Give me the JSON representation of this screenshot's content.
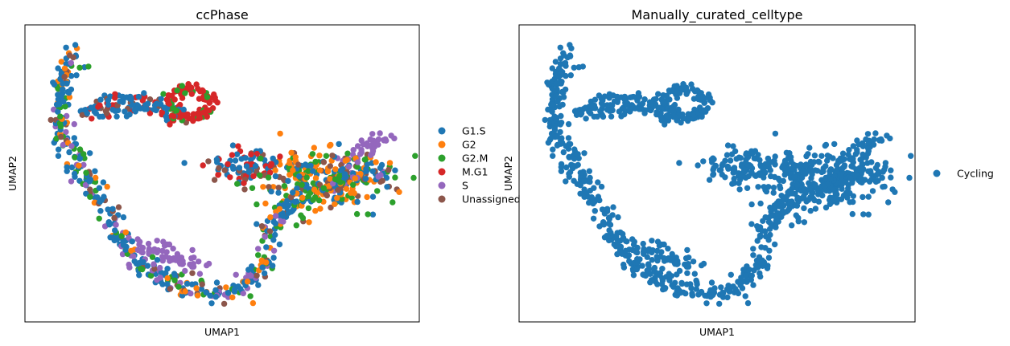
{
  "chart_data": [
    {
      "type": "scatter",
      "title": "ccPhase",
      "xlabel": "UMAP1",
      "ylabel": "UMAP2",
      "xlim": [
        -0.5,
        10.5
      ],
      "ylim": [
        -0.5,
        10.5
      ],
      "grid": false,
      "ticks": "none",
      "legend": {
        "position": "right",
        "entries": [
          "G1.S",
          "G2",
          "G2.M",
          "M.G1",
          "S",
          "Unassigned"
        ],
        "colors": [
          "#1f77b4",
          "#ff7f0e",
          "#2ca02c",
          "#d62728",
          "#9467bd",
          "#8c564b"
        ]
      },
      "series_counts": {
        "G1.S": 420,
        "G2": 160,
        "G2.M": 180,
        "M.G1": 140,
        "S": 170,
        "Unassigned": 130
      }
    },
    {
      "type": "scatter",
      "title": "Manually_curated_celltype",
      "xlabel": "UMAP1",
      "ylabel": "UMAP2",
      "xlim": [
        -0.5,
        10.5
      ],
      "ylim": [
        -0.5,
        10.5
      ],
      "grid": false,
      "ticks": "none",
      "legend": {
        "position": "right",
        "entries": [
          "Cycling"
        ],
        "colors": [
          "#1f77b4"
        ]
      },
      "series_counts": {
        "Cycling": 1200
      }
    }
  ]
}
